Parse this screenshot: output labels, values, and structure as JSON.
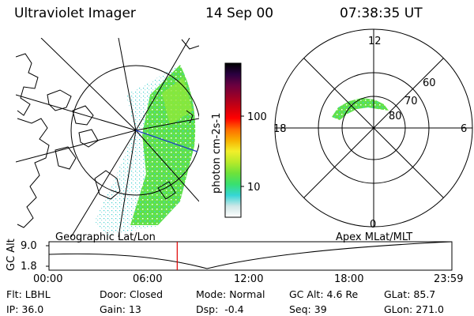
{
  "header": {
    "title": "Ultraviolet Imager",
    "date": "14 Sep 00",
    "time": "07:38:35 UT"
  },
  "colorbar": {
    "label": "photon cm-2s-1",
    "ticks": [
      "100",
      "10"
    ],
    "stops": [
      "#ffffff",
      "#cfe7e7",
      "#35d6d6",
      "#38e070",
      "#6ee23a",
      "#b8ea2a",
      "#f2ef2a",
      "#f8b000",
      "#ff6a00",
      "#ff0000",
      "#cc0010",
      "#9a0028",
      "#6a0040",
      "#2a0040",
      "#000000"
    ]
  },
  "polar_plot": {
    "mlt_labels": {
      "top": "12",
      "left": "18",
      "right": "6",
      "bottom": "0"
    },
    "lat_labels": [
      "60",
      "70",
      "80"
    ]
  },
  "timeline": {
    "left_title": "Geographic Lat/Lon",
    "right_title": "Apex  MLat/MLT",
    "axis_label": "GC Alt",
    "y_ticks": [
      "9.0",
      "1.8"
    ],
    "x_ticks": [
      "00:00",
      "06:00",
      "12:00",
      "18:00",
      "23:59"
    ],
    "marker_time": "07:38"
  },
  "info": {
    "row1": [
      {
        "label": "Flt:",
        "value": "LBHL"
      },
      {
        "label": "Door:",
        "value": "Closed"
      },
      {
        "label": "Mode:",
        "value": "Normal"
      },
      {
        "label": "GC Alt:",
        "value": "4.6 Re"
      },
      {
        "label": "GLat:",
        "value": "85.7"
      }
    ],
    "row2": [
      {
        "label": "IP:",
        "value": "36.0"
      },
      {
        "label": "Gain:",
        "value": "13"
      },
      {
        "label": "Dsp:",
        "value": "-0.4"
      },
      {
        "label": "Seq:",
        "value": "39"
      },
      {
        "label": "GLon:",
        "value": "271.0"
      }
    ]
  }
}
